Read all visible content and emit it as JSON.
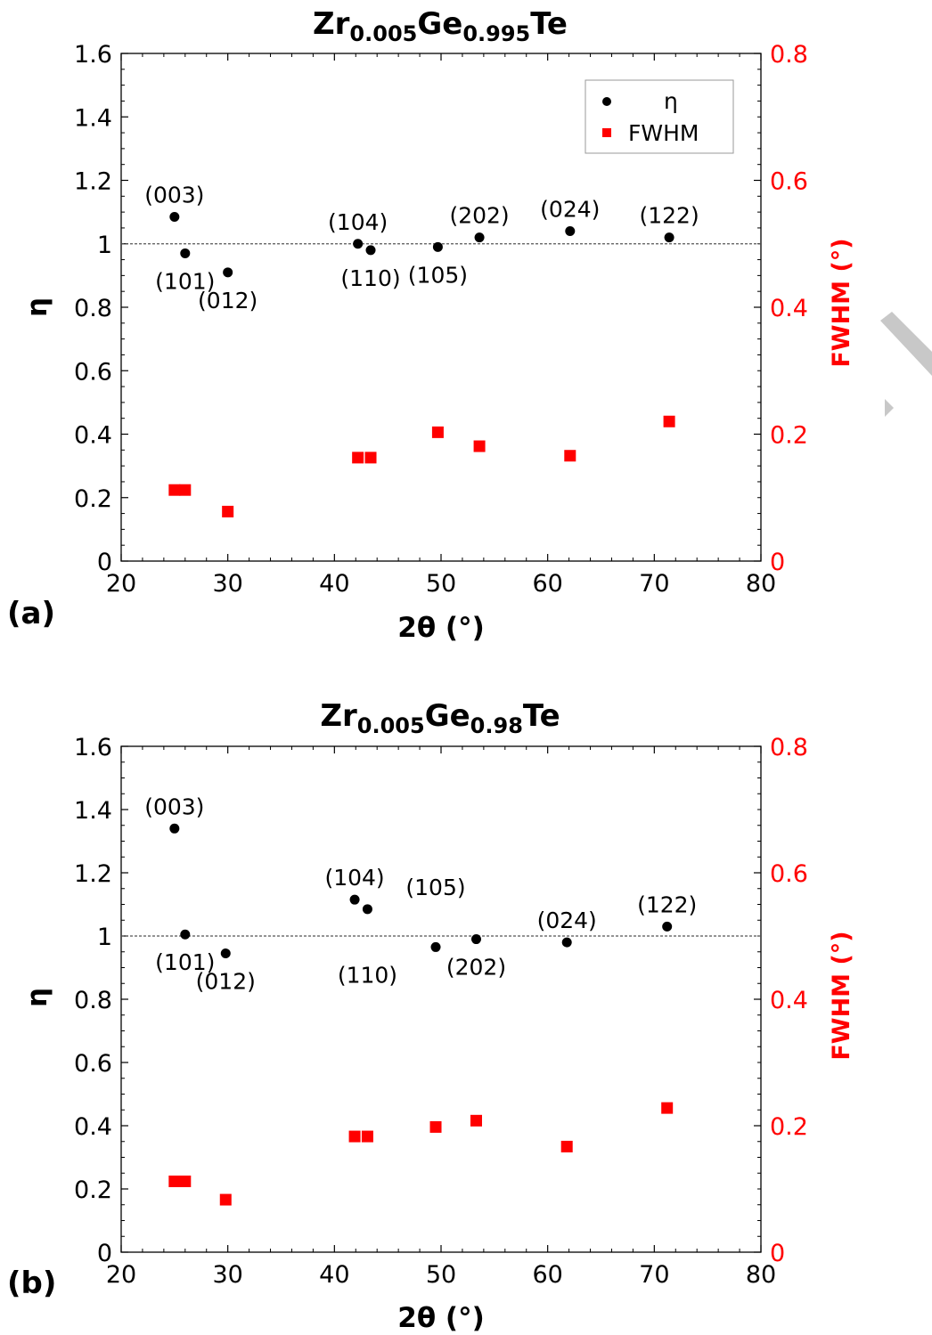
{
  "chart_data": [
    {
      "type": "scatter",
      "panel_label": "(a)",
      "title": {
        "main1": "Zr",
        "sub1": "0.005",
        "main2": "Ge",
        "sub2": "0.995",
        "main3": "Te"
      },
      "xlabel": "2θ (°)",
      "ylabel": "η",
      "ylabel_right": "FWHM (°)",
      "xlim": [
        20,
        80
      ],
      "ylim": [
        0,
        1.6
      ],
      "ylim_right": [
        0,
        0.8
      ],
      "xticks": [
        20,
        30,
        40,
        50,
        60,
        70,
        80
      ],
      "yticks": [
        0,
        0.2,
        0.4,
        0.6,
        0.8,
        1,
        1.2,
        1.4,
        1.6
      ],
      "yticks_right": [
        0,
        0.2,
        0.4,
        0.6,
        0.8
      ],
      "reference_line": 1,
      "legend": {
        "position": "top-right",
        "entries": [
          "η",
          "FWHM"
        ]
      },
      "series": [
        {
          "name": "η",
          "axis": "left",
          "color": "#000000",
          "marker": "circle",
          "x": [
            25.0,
            26.0,
            30.0,
            42.2,
            43.4,
            49.7,
            53.6,
            62.1,
            71.4
          ],
          "y": [
            1.085,
            0.97,
            0.91,
            1.0,
            0.98,
            0.99,
            1.02,
            1.04,
            1.02
          ]
        },
        {
          "name": "FWHM",
          "axis": "right",
          "color": "#ff0000",
          "marker": "square",
          "x": [
            25.0,
            26.0,
            30.0,
            42.2,
            43.4,
            49.7,
            53.6,
            62.1,
            71.4
          ],
          "y": [
            0.112,
            0.112,
            0.078,
            0.163,
            0.163,
            0.203,
            0.181,
            0.166,
            0.22
          ]
        }
      ],
      "annotations": [
        {
          "text": "(003)",
          "x": 25.0,
          "y": 1.085,
          "pos": "above"
        },
        {
          "text": "(101)",
          "x": 26.0,
          "y": 0.97,
          "pos": "below"
        },
        {
          "text": "(012)",
          "x": 30.0,
          "y": 0.91,
          "pos": "below"
        },
        {
          "text": "(104)",
          "x": 42.2,
          "y": 1.0,
          "pos": "above"
        },
        {
          "text": "(110)",
          "x": 43.4,
          "y": 0.98,
          "pos": "below"
        },
        {
          "text": "(105)",
          "x": 49.7,
          "y": 0.99,
          "pos": "below"
        },
        {
          "text": "(202)",
          "x": 53.6,
          "y": 1.02,
          "pos": "above"
        },
        {
          "text": "(024)",
          "x": 62.1,
          "y": 1.04,
          "pos": "above"
        },
        {
          "text": "(122)",
          "x": 71.4,
          "y": 1.02,
          "pos": "above"
        }
      ]
    },
    {
      "type": "scatter",
      "panel_label": "(b)",
      "title": {
        "main1": "Zr",
        "sub1": "0.005",
        "main2": "Ge",
        "sub2": "0.98",
        "main3": "Te"
      },
      "xlabel": "2θ (°)",
      "ylabel": "η",
      "ylabel_right": "FWHM (°)",
      "xlim": [
        20,
        80
      ],
      "ylim": [
        0,
        1.6
      ],
      "ylim_right": [
        0,
        0.8
      ],
      "xticks": [
        20,
        30,
        40,
        50,
        60,
        70,
        80
      ],
      "yticks": [
        0,
        0.2,
        0.4,
        0.6,
        0.8,
        1,
        1.2,
        1.4,
        1.6
      ],
      "yticks_right": [
        0,
        0.2,
        0.4,
        0.6,
        0.8
      ],
      "reference_line": 1,
      "series": [
        {
          "name": "η",
          "axis": "left",
          "color": "#000000",
          "marker": "circle",
          "x": [
            25.0,
            26.0,
            29.8,
            41.9,
            43.1,
            49.5,
            53.3,
            61.8,
            71.2
          ],
          "y": [
            1.34,
            1.005,
            0.945,
            1.115,
            1.085,
            0.965,
            0.99,
            0.98,
            1.03
          ]
        },
        {
          "name": "FWHM",
          "axis": "right",
          "color": "#ff0000",
          "marker": "square",
          "x": [
            25.0,
            26.0,
            29.8,
            41.9,
            43.1,
            49.5,
            53.3,
            61.8,
            71.2
          ],
          "y": [
            0.112,
            0.112,
            0.083,
            0.183,
            0.183,
            0.198,
            0.208,
            0.167,
            0.228
          ]
        }
      ],
      "annotations": [
        {
          "text": "(003)",
          "x": 25.0,
          "y": 1.34,
          "pos": "above"
        },
        {
          "text": "(101)",
          "x": 26.0,
          "y": 1.005,
          "pos": "below"
        },
        {
          "text": "(012)",
          "x": 29.8,
          "y": 0.945,
          "pos": "below"
        },
        {
          "text": "(104)",
          "x": 41.9,
          "y": 1.115,
          "pos": "above"
        },
        {
          "text": "(110)",
          "x": 43.1,
          "y": 0.965,
          "pos": "below"
        },
        {
          "text": "(105)",
          "x": 49.5,
          "y": 1.085,
          "pos": "above"
        },
        {
          "text": "(202)",
          "x": 53.3,
          "y": 0.99,
          "pos": "below"
        },
        {
          "text": "(024)",
          "x": 61.8,
          "y": 0.98,
          "pos": "above"
        },
        {
          "text": "(122)",
          "x": 71.2,
          "y": 1.03,
          "pos": "above"
        }
      ]
    }
  ]
}
